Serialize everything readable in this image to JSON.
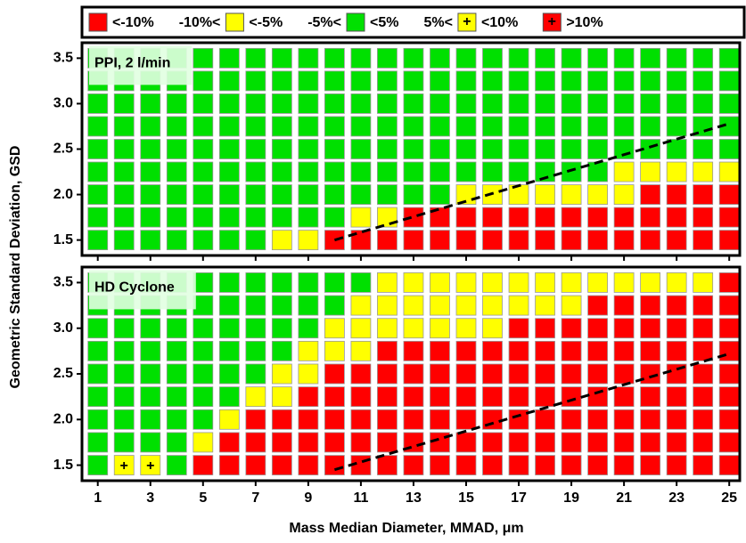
{
  "chart_data": {
    "type": "heatmap",
    "xlabel": "Mass Median Diameter, MMAD, μm",
    "ylabel": "Geometric Standard Deviation, GSD",
    "x": [
      1,
      2,
      3,
      4,
      5,
      6,
      7,
      8,
      9,
      10,
      11,
      12,
      13,
      14,
      15,
      16,
      17,
      18,
      19,
      20,
      21,
      22,
      23,
      24,
      25
    ],
    "y": [
      1.5,
      1.75,
      2,
      2.25,
      2.5,
      2.75,
      3,
      3.25,
      3.5
    ],
    "xlim": [
      0.4,
      25.4
    ],
    "ylim": [
      1.33,
      3.67
    ],
    "xticks": [
      1,
      3,
      5,
      7,
      9,
      11,
      13,
      15,
      17,
      19,
      21,
      23,
      25
    ],
    "yticks": [
      1.5,
      {
        "value": 2,
        "label": "2.0"
      },
      2.5,
      {
        "value": 3,
        "label": "3.0"
      },
      3.5
    ],
    "classes": [
      {
        "labels": [
          "<-10%"
        ],
        "color": "#ff0000"
      },
      {
        "labels": [
          "-10%<",
          "<-5%"
        ],
        "color": "#ffff00"
      },
      {
        "labels": [
          "-5%<",
          "<5%"
        ],
        "color": "#00e000"
      },
      {
        "labels": [
          "5%<",
          "<10%"
        ],
        "color": "#ffff00",
        "marker": "+"
      },
      {
        "labels": [
          ">10%"
        ],
        "color": "#ff0000",
        "marker": "+",
        "marker_first": true
      }
    ],
    "panels": [
      {
        "label": "PPI, 2 l/min",
        "z": [
          [
            2,
            2,
            2,
            2,
            2,
            2,
            2,
            1,
            1,
            0,
            0,
            0,
            0,
            0,
            0,
            0,
            0,
            0,
            0,
            0,
            0,
            0,
            0,
            0,
            0
          ],
          [
            2,
            2,
            2,
            2,
            2,
            2,
            2,
            2,
            2,
            2,
            1,
            1,
            0,
            0,
            0,
            0,
            0,
            0,
            0,
            0,
            0,
            0,
            0,
            0,
            0
          ],
          [
            2,
            2,
            2,
            2,
            2,
            2,
            2,
            2,
            2,
            2,
            2,
            2,
            2,
            2,
            1,
            1,
            1,
            1,
            1,
            1,
            1,
            0,
            0,
            0,
            0
          ],
          [
            2,
            2,
            2,
            2,
            2,
            2,
            2,
            2,
            2,
            2,
            2,
            2,
            2,
            2,
            2,
            2,
            2,
            2,
            2,
            2,
            1,
            1,
            1,
            1,
            1
          ],
          [
            2,
            2,
            2,
            2,
            2,
            2,
            2,
            2,
            2,
            2,
            2,
            2,
            2,
            2,
            2,
            2,
            2,
            2,
            2,
            2,
            2,
            2,
            2,
            2,
            2
          ],
          [
            2,
            2,
            2,
            2,
            2,
            2,
            2,
            2,
            2,
            2,
            2,
            2,
            2,
            2,
            2,
            2,
            2,
            2,
            2,
            2,
            2,
            2,
            2,
            2,
            2
          ],
          [
            2,
            2,
            2,
            2,
            2,
            2,
            2,
            2,
            2,
            2,
            2,
            2,
            2,
            2,
            2,
            2,
            2,
            2,
            2,
            2,
            2,
            2,
            2,
            2,
            2
          ],
          [
            2,
            2,
            2,
            2,
            2,
            2,
            2,
            2,
            2,
            2,
            2,
            2,
            2,
            2,
            2,
            2,
            2,
            2,
            2,
            2,
            2,
            2,
            2,
            2,
            2
          ],
          [
            2,
            2,
            2,
            2,
            2,
            2,
            2,
            2,
            2,
            2,
            2,
            2,
            2,
            2,
            2,
            2,
            2,
            2,
            2,
            2,
            2,
            2,
            2,
            2,
            2
          ]
        ],
        "trend": {
          "x": [
            10,
            25
          ],
          "y": [
            1.5,
            2.78
          ]
        }
      },
      {
        "label": "HD Cyclone",
        "z": [
          [
            2,
            3,
            3,
            2,
            0,
            0,
            0,
            0,
            0,
            0,
            0,
            0,
            0,
            0,
            0,
            0,
            0,
            0,
            0,
            0,
            0,
            0,
            0,
            0,
            0
          ],
          [
            2,
            2,
            2,
            2,
            1,
            0,
            0,
            0,
            0,
            0,
            0,
            0,
            0,
            0,
            0,
            0,
            0,
            0,
            0,
            0,
            0,
            0,
            0,
            0,
            0
          ],
          [
            2,
            2,
            2,
            2,
            2,
            1,
            0,
            0,
            0,
            0,
            0,
            0,
            0,
            0,
            0,
            0,
            0,
            0,
            0,
            0,
            0,
            0,
            0,
            0,
            0
          ],
          [
            2,
            2,
            2,
            2,
            2,
            2,
            1,
            1,
            0,
            0,
            0,
            0,
            0,
            0,
            0,
            0,
            0,
            0,
            0,
            0,
            0,
            0,
            0,
            0,
            0
          ],
          [
            2,
            2,
            2,
            2,
            2,
            2,
            2,
            1,
            1,
            0,
            0,
            0,
            0,
            0,
            0,
            0,
            0,
            0,
            0,
            0,
            0,
            0,
            0,
            0,
            0
          ],
          [
            2,
            2,
            2,
            2,
            2,
            2,
            2,
            2,
            1,
            1,
            1,
            0,
            0,
            0,
            0,
            0,
            0,
            0,
            0,
            0,
            0,
            0,
            0,
            0,
            0
          ],
          [
            2,
            2,
            2,
            2,
            2,
            2,
            2,
            2,
            2,
            1,
            1,
            1,
            1,
            1,
            1,
            1,
            0,
            0,
            0,
            0,
            0,
            0,
            0,
            0,
            0
          ],
          [
            2,
            2,
            2,
            2,
            2,
            2,
            2,
            2,
            2,
            2,
            1,
            1,
            1,
            1,
            1,
            1,
            1,
            1,
            1,
            0,
            0,
            0,
            0,
            0,
            0
          ],
          [
            2,
            2,
            2,
            2,
            2,
            2,
            2,
            2,
            2,
            2,
            2,
            1,
            1,
            1,
            1,
            1,
            1,
            1,
            1,
            1,
            1,
            1,
            1,
            1,
            0
          ]
        ],
        "trend": {
          "x": [
            10,
            25
          ],
          "y": [
            1.45,
            2.72
          ]
        }
      }
    ]
  }
}
